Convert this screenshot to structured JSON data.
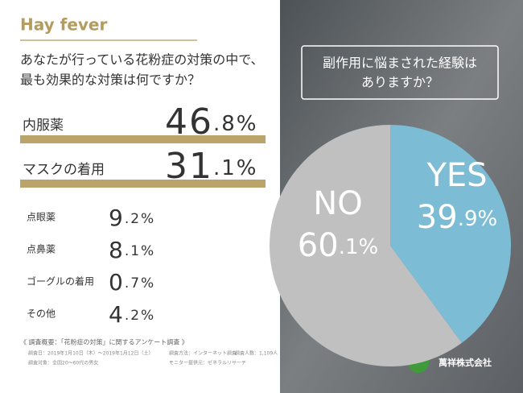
{
  "header": {
    "title": "Hay fever"
  },
  "chart_data": [
    {
      "type": "bar",
      "title": [
        "あなたが行っている花粉症の対策の中で、",
        "最も効果的な対策は何ですか？"
      ],
      "categories": [
        "内服薬",
        "マスクの着用",
        "点眼薬",
        "点鼻薬",
        "ゴーグルの着用",
        "その他"
      ],
      "values": [
        46.8,
        31.1,
        9.2,
        8.1,
        0.7,
        4.2
      ],
      "value_labels": [
        "46.8%",
        "31.1%",
        "9.2%",
        "8.1%",
        "0.7%",
        "4.2%"
      ],
      "color": "#bba46a"
    },
    {
      "type": "pie",
      "title": [
        "副作用に悩まされた経験は",
        "ありますか？"
      ],
      "categories": [
        "YES",
        "NO"
      ],
      "values": [
        39.9,
        60.1
      ],
      "value_labels": [
        "39.9%",
        "60.1%"
      ],
      "colors": [
        "#7cbcd4",
        "#c0c0c0"
      ]
    }
  ],
  "footer": {
    "heading": "《 調査概要：「花粉症の対策」に関するアンケート調査 》",
    "items": [
      "調査日：2019年1月10日（木）～2019年1月12日（土）",
      "調査方法：インターネット調査",
      "調査人数：1,109人",
      "調査対象：全国20～60代の男女",
      "モニター提供元：ゼネラルリサーチ"
    ],
    "company": "萬祥株式会社"
  }
}
